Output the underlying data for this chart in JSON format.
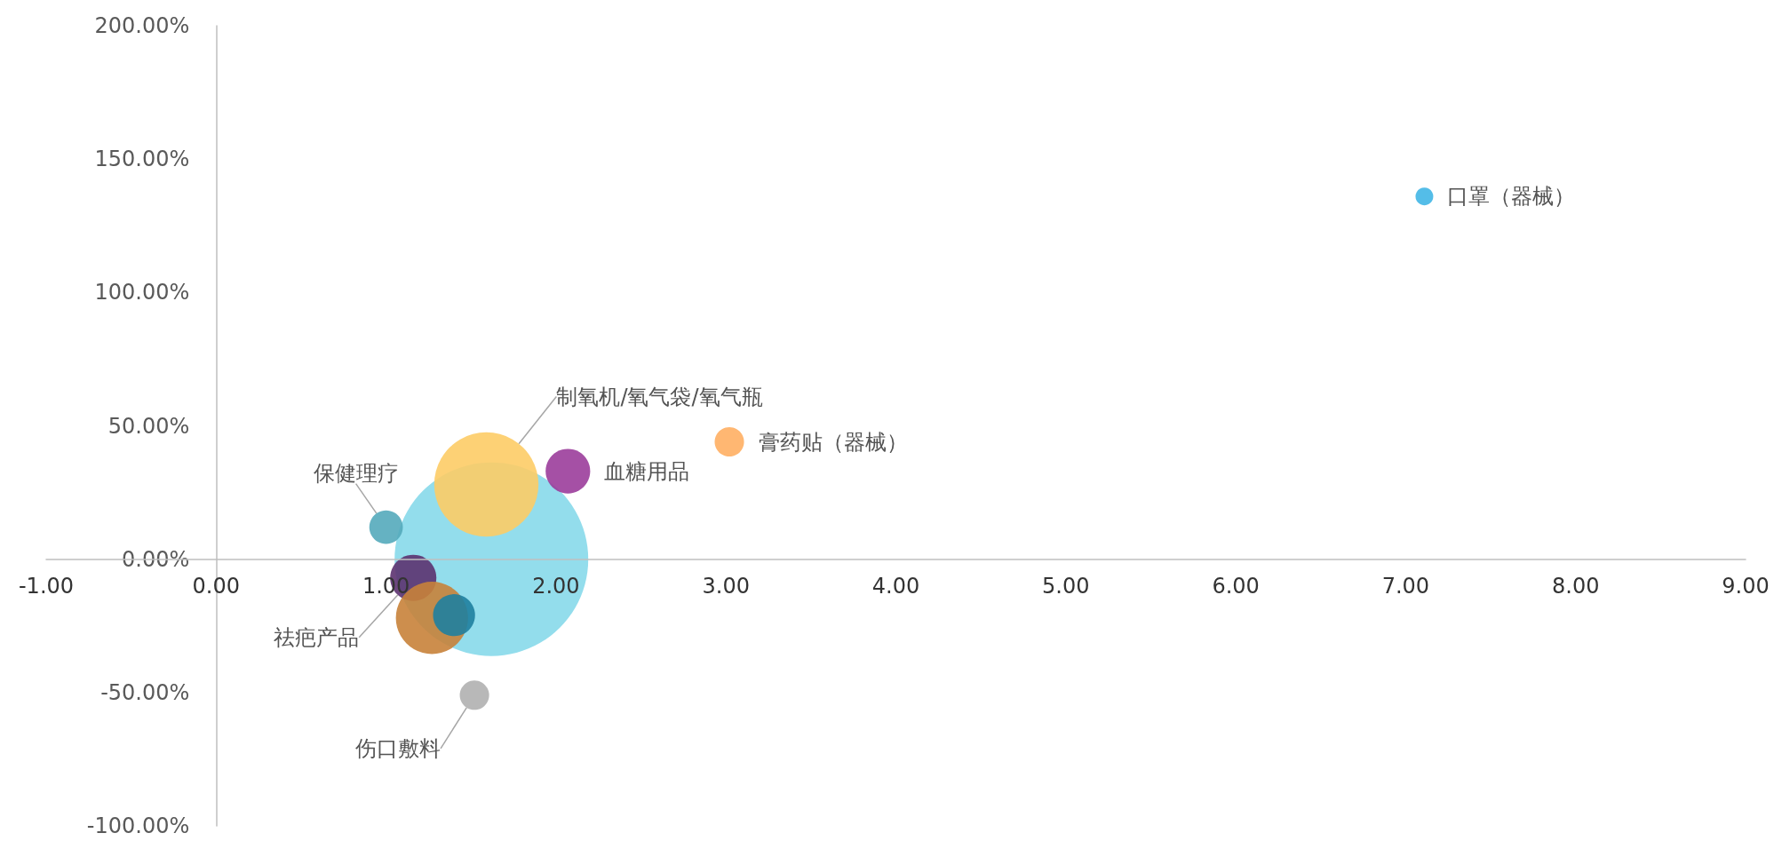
{
  "chart_data": {
    "type": "bubble",
    "xlim": [
      -1,
      9
    ],
    "xticks": [
      {
        "value": -1,
        "label": "-1.00"
      },
      {
        "value": 0,
        "label": "0.00"
      },
      {
        "value": 1,
        "label": "1.00"
      },
      {
        "value": 2,
        "label": "2.00"
      },
      {
        "value": 3,
        "label": "3.00"
      },
      {
        "value": 4,
        "label": "4.00"
      },
      {
        "value": 5,
        "label": "5.00"
      },
      {
        "value": 6,
        "label": "6.00"
      },
      {
        "value": 7,
        "label": "7.00"
      },
      {
        "value": 8,
        "label": "8.00"
      },
      {
        "value": 9,
        "label": "9.00"
      }
    ],
    "ylim": [
      -100,
      200
    ],
    "yticks": [
      {
        "value": -100,
        "label": "-100.00%"
      },
      {
        "value": -50,
        "label": "-50.00%"
      },
      {
        "value": 0,
        "label": "0.00%"
      },
      {
        "value": 50,
        "label": "50.00%"
      },
      {
        "value": 100,
        "label": "100.00%"
      },
      {
        "value": 150,
        "label": "150.00%"
      },
      {
        "value": 200,
        "label": "200.00%"
      }
    ],
    "grid": false,
    "legend": false,
    "series": [
      {
        "color": "#87d9ea",
        "x": [
          1.62
        ],
        "values": [
          0
        ],
        "sizes": [
          1
        ]
      },
      {
        "name": "制氧机/氧气袋/氧气瓶",
        "color": "#fdcc66",
        "x": [
          1.59
        ],
        "values": [
          28
        ],
        "sizes": [
          0.29
        ]
      },
      {
        "name": "血糖用品",
        "color": "#9b3d9b",
        "x": [
          2.07
        ],
        "values": [
          33
        ],
        "sizes": [
          0.053
        ]
      },
      {
        "name": "膏药贴（器械）",
        "color": "#ffaf63",
        "x": [
          3.02
        ],
        "values": [
          44
        ],
        "sizes": [
          0.023
        ]
      },
      {
        "name": "保健理疗",
        "color": "#54aabb",
        "x": [
          1.0
        ],
        "values": [
          12
        ],
        "sizes": [
          0.03
        ]
      },
      {
        "name": "祛疤产品",
        "color": "#5c3270",
        "x": [
          1.16
        ],
        "values": [
          -7
        ],
        "sizes": [
          0.057
        ]
      },
      {
        "color": "#c8823a",
        "x": [
          1.27
        ],
        "values": [
          -22
        ],
        "sizes": [
          0.139
        ]
      },
      {
        "color": "#1f7fa0",
        "x": [
          1.4
        ],
        "values": [
          -21
        ],
        "sizes": [
          0.047
        ]
      },
      {
        "name": "伤口敷料",
        "color": "#b0b0b0",
        "x": [
          1.52
        ],
        "values": [
          -51
        ],
        "sizes": [
          0.023
        ]
      },
      {
        "name": "口罩（器械）",
        "color": "#41b6e6",
        "x": [
          7.11
        ],
        "values": [
          136
        ],
        "sizes": [
          0.0084
        ]
      }
    ]
  }
}
